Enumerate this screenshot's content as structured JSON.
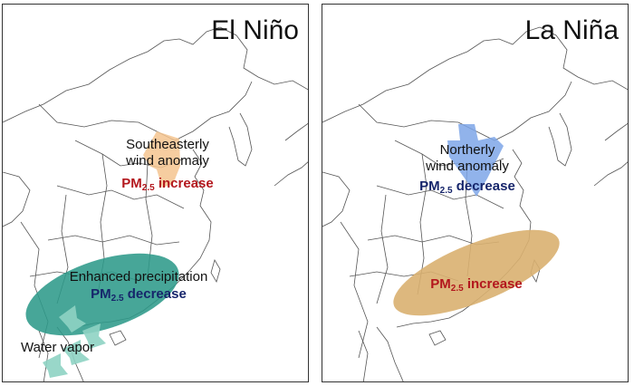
{
  "panels": [
    {
      "title": "El Niño",
      "labels": {
        "wind_line1": "Southeasterly",
        "wind_line2": "wind anomaly",
        "pm_prefix": "PM",
        "pm_sub": "2.5",
        "pm_increase": " increase",
        "precip": "Enhanced precipitation",
        "pm_decrease": " decrease",
        "water_vapor": "Water vapor"
      }
    },
    {
      "title": "La Niña",
      "labels": {
        "wind_line1": "Northerly",
        "wind_line2": "wind anomaly",
        "pm_prefix": "PM",
        "pm_sub": "2.5",
        "pm_decrease": " decrease",
        "pm_increase": " increase"
      }
    }
  ],
  "colors": {
    "increase_text": "#b3171d",
    "decrease_text": "#16256b",
    "southeasterly_arrow": "#f4c48f",
    "northerly_arrow": "#7ea6e8",
    "precipitation_region": "#2e9a8a",
    "pm_increase_region": "#d9b070",
    "water_vapor_arrows": "#8fd3c4"
  },
  "icons": [
    "southeasterly-wind-arrow-icon",
    "northerly-wind-arrow-icon",
    "water-vapor-arrow-icon"
  ]
}
